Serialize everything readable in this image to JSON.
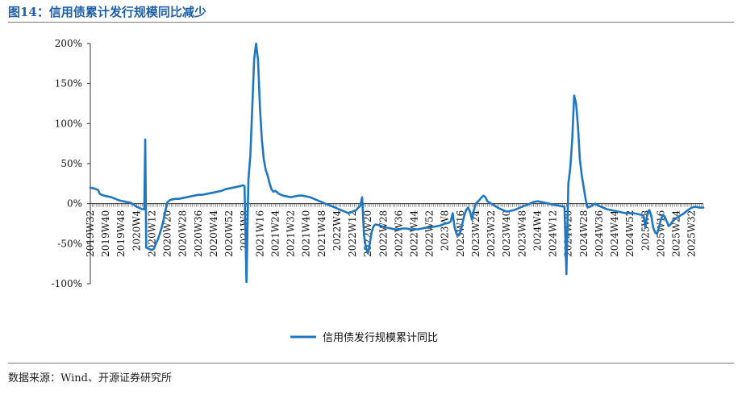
{
  "figure": {
    "title": "图14：信用债累计发行规模同比减少",
    "source": "数据来源：Wind、开源证券研究所"
  },
  "chart_data": {
    "type": "line",
    "ylim": [
      -100,
      200
    ],
    "yticks": [
      -100,
      -50,
      0,
      50,
      100,
      150,
      200
    ],
    "ytick_labels": [
      "-100%",
      "-50%",
      "0%",
      "50%",
      "100%",
      "150%",
      "200%"
    ],
    "xlim": [
      0,
      318
    ],
    "x_tick_labels": [
      "2019W32",
      "2019W40",
      "2019W48",
      "2020W4",
      "2020W12",
      "2020W20",
      "2020W28",
      "2020W36",
      "2020W44",
      "2020W52",
      "2021W8",
      "2021W16",
      "2021W24",
      "2021W32",
      "2021W40",
      "2021W48",
      "2022W4",
      "2022W12",
      "2022W20",
      "2022W28",
      "2022W36",
      "2022W44",
      "2022W52",
      "2023W8",
      "2023W16",
      "2023W24",
      "2023W32",
      "2023W40",
      "2023W48",
      "2024W4",
      "2024W12",
      "2024W20",
      "2024W28",
      "2024W36",
      "2024W44",
      "2024W52",
      "2025W8",
      "2025W16",
      "2025W24",
      "2025W32"
    ],
    "series": [
      {
        "name": "信用债发行规模累计同比",
        "color": "#1f77c4",
        "points": [
          [
            0,
            20
          ],
          [
            2,
            19
          ],
          [
            4,
            17
          ],
          [
            5,
            12
          ],
          [
            7,
            10
          ],
          [
            9,
            9
          ],
          [
            11,
            8
          ],
          [
            13,
            6
          ],
          [
            15,
            4
          ],
          [
            17,
            3
          ],
          [
            19,
            2
          ],
          [
            21,
            1
          ],
          [
            23,
            -2
          ],
          [
            24,
            -4
          ],
          [
            25,
            -5
          ],
          [
            26,
            -6
          ],
          [
            27,
            -7
          ],
          [
            28,
            -7
          ],
          [
            28.5,
            80
          ],
          [
            29,
            -55
          ],
          [
            30,
            -56
          ],
          [
            31,
            -57
          ],
          [
            32,
            -58
          ],
          [
            33,
            -56
          ],
          [
            34,
            -50
          ],
          [
            35,
            -45
          ],
          [
            36,
            -38
          ],
          [
            37,
            -30
          ],
          [
            38,
            -20
          ],
          [
            39,
            -8
          ],
          [
            40,
            2
          ],
          [
            41,
            4
          ],
          [
            42,
            5
          ],
          [
            44,
            6
          ],
          [
            46,
            6
          ],
          [
            48,
            7
          ],
          [
            50,
            8
          ],
          [
            52,
            9
          ],
          [
            54,
            10
          ],
          [
            56,
            11
          ],
          [
            58,
            11
          ],
          [
            60,
            12
          ],
          [
            62,
            13
          ],
          [
            64,
            14
          ],
          [
            66,
            15
          ],
          [
            68,
            16
          ],
          [
            70,
            18
          ],
          [
            72,
            19
          ],
          [
            74,
            20
          ],
          [
            76,
            21
          ],
          [
            78,
            22
          ],
          [
            79,
            23
          ],
          [
            80,
            22
          ],
          [
            81,
            -98
          ],
          [
            82,
            30
          ],
          [
            83,
            60
          ],
          [
            84,
            120
          ],
          [
            85,
            180
          ],
          [
            86,
            200
          ],
          [
            87,
            180
          ],
          [
            88,
            120
          ],
          [
            89,
            80
          ],
          [
            90,
            55
          ],
          [
            91,
            42
          ],
          [
            92,
            35
          ],
          [
            93,
            25
          ],
          [
            94,
            18
          ],
          [
            95,
            15
          ],
          [
            96,
            16
          ],
          [
            97,
            14
          ],
          [
            98,
            12
          ],
          [
            100,
            10
          ],
          [
            102,
            9
          ],
          [
            104,
            8
          ],
          [
            106,
            9
          ],
          [
            108,
            10
          ],
          [
            110,
            10
          ],
          [
            112,
            9
          ],
          [
            114,
            8
          ],
          [
            116,
            6
          ],
          [
            118,
            4
          ],
          [
            120,
            2
          ],
          [
            122,
            0
          ],
          [
            124,
            -2
          ],
          [
            126,
            -4
          ],
          [
            128,
            -6
          ],
          [
            130,
            -8
          ],
          [
            132,
            -10
          ],
          [
            134,
            -12
          ],
          [
            136,
            -10
          ],
          [
            137,
            -9
          ],
          [
            138,
            -8
          ],
          [
            139,
            -5
          ],
          [
            140,
            -3
          ],
          [
            141,
            8
          ],
          [
            142,
            -40
          ],
          [
            143,
            -55
          ],
          [
            144,
            -62
          ],
          [
            145,
            -50
          ],
          [
            146,
            -35
          ],
          [
            147,
            -28
          ],
          [
            148,
            -26
          ],
          [
            150,
            -27
          ],
          [
            152,
            -29
          ],
          [
            154,
            -30
          ],
          [
            156,
            -31
          ],
          [
            158,
            -32
          ],
          [
            160,
            -32
          ],
          [
            162,
            -31
          ],
          [
            164,
            -31
          ],
          [
            166,
            -32
          ],
          [
            168,
            -32
          ],
          [
            170,
            -32
          ],
          [
            172,
            -31
          ],
          [
            174,
            -30
          ],
          [
            176,
            -30
          ],
          [
            178,
            -29
          ],
          [
            180,
            -28
          ],
          [
            182,
            -27
          ],
          [
            184,
            -25
          ],
          [
            186,
            -24
          ],
          [
            187,
            -22
          ],
          [
            188,
            -12
          ],
          [
            189,
            -30
          ],
          [
            190,
            -38
          ],
          [
            191,
            -40
          ],
          [
            192,
            -35
          ],
          [
            193,
            -25
          ],
          [
            194,
            -15
          ],
          [
            195,
            -8
          ],
          [
            196,
            -5
          ],
          [
            197,
            -10
          ],
          [
            198,
            -20
          ],
          [
            199,
            -8
          ],
          [
            200,
            0
          ],
          [
            202,
            5
          ],
          [
            203,
            8
          ],
          [
            204,
            10
          ],
          [
            205,
            8
          ],
          [
            206,
            3
          ],
          [
            208,
            0
          ],
          [
            210,
            -3
          ],
          [
            212,
            -6
          ],
          [
            214,
            -8
          ],
          [
            216,
            -10
          ],
          [
            218,
            -9
          ],
          [
            220,
            -8
          ],
          [
            222,
            -6
          ],
          [
            224,
            -4
          ],
          [
            226,
            -2
          ],
          [
            228,
            0
          ],
          [
            230,
            2
          ],
          [
            232,
            3
          ],
          [
            234,
            2
          ],
          [
            236,
            1
          ],
          [
            238,
            0
          ],
          [
            240,
            -1
          ],
          [
            242,
            -2
          ],
          [
            244,
            -3
          ],
          [
            246,
            -4
          ],
          [
            247,
            -88
          ],
          [
            248,
            25
          ],
          [
            249,
            45
          ],
          [
            250,
            80
          ],
          [
            251,
            135
          ],
          [
            252,
            125
          ],
          [
            253,
            95
          ],
          [
            254,
            55
          ],
          [
            255,
            35
          ],
          [
            256,
            20
          ],
          [
            257,
            5
          ],
          [
            258,
            -5
          ],
          [
            259,
            -4
          ],
          [
            260,
            -3
          ],
          [
            261,
            -1
          ],
          [
            262,
            0
          ],
          [
            264,
            -3
          ],
          [
            266,
            -5
          ],
          [
            268,
            -7
          ],
          [
            270,
            -8
          ],
          [
            272,
            -9
          ],
          [
            274,
            -10
          ],
          [
            276,
            -11
          ],
          [
            278,
            -12
          ],
          [
            280,
            -12
          ],
          [
            282,
            -12
          ],
          [
            284,
            -13
          ],
          [
            286,
            -14
          ],
          [
            287,
            -15
          ],
          [
            288,
            -30
          ],
          [
            289,
            -12
          ],
          [
            290,
            -8
          ],
          [
            291,
            -15
          ],
          [
            292,
            -30
          ],
          [
            293,
            -36
          ],
          [
            294,
            -38
          ],
          [
            295,
            -30
          ],
          [
            296,
            -20
          ],
          [
            297,
            -14
          ],
          [
            298,
            -16
          ],
          [
            299,
            -22
          ],
          [
            300,
            -28
          ],
          [
            301,
            -26
          ],
          [
            302,
            -22
          ],
          [
            303,
            -20
          ],
          [
            304,
            -18
          ],
          [
            306,
            -15
          ],
          [
            308,
            -12
          ],
          [
            310,
            -8
          ],
          [
            312,
            -5
          ],
          [
            314,
            -4
          ],
          [
            316,
            -5
          ],
          [
            318,
            -5
          ]
        ]
      }
    ],
    "legend": {
      "position": "bottom-center"
    },
    "grid": false
  }
}
